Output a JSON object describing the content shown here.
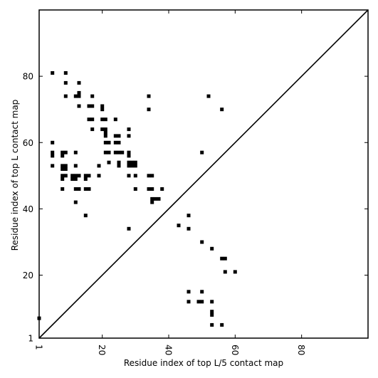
{
  "chart_data": {
    "type": "scatter",
    "title": "",
    "xlabel": "Residue index of top L/5 contact map",
    "ylabel": "Residue index of top L contact map",
    "xlim": [
      1,
      100
    ],
    "ylim": [
      1,
      100
    ],
    "xticks": [
      1,
      20,
      40,
      60,
      80
    ],
    "yticks": [
      1,
      20,
      40,
      60,
      80
    ],
    "xtick_labels": [
      "1",
      "20",
      "40",
      "60",
      "80"
    ],
    "ytick_labels": [
      "1",
      "20",
      "40",
      "60",
      "80"
    ],
    "xtick_rotation": "vertical",
    "diagonal": true,
    "grid": false,
    "marker": "square",
    "color": "#000000",
    "series": [
      {
        "name": "",
        "points": [
          [
            5,
            81
          ],
          [
            9,
            81
          ],
          [
            9,
            78
          ],
          [
            13,
            78
          ],
          [
            9,
            74
          ],
          [
            12,
            74
          ],
          [
            13,
            75
          ],
          [
            13,
            74
          ],
          [
            17,
            74
          ],
          [
            34,
            74
          ],
          [
            52,
            74
          ],
          [
            13,
            71
          ],
          [
            16,
            71
          ],
          [
            17,
            71
          ],
          [
            20,
            71
          ],
          [
            20,
            70
          ],
          [
            34,
            70
          ],
          [
            56,
            70
          ],
          [
            16,
            67
          ],
          [
            17,
            67
          ],
          [
            20,
            67
          ],
          [
            21,
            67
          ],
          [
            24,
            67
          ],
          [
            17,
            64
          ],
          [
            20,
            64
          ],
          [
            21,
            64
          ],
          [
            21,
            63
          ],
          [
            28,
            64
          ],
          [
            21,
            62
          ],
          [
            24,
            62
          ],
          [
            25,
            62
          ],
          [
            28,
            62
          ],
          [
            5,
            60
          ],
          [
            21,
            60
          ],
          [
            22,
            60
          ],
          [
            24,
            60
          ],
          [
            25,
            60
          ],
          [
            5,
            57
          ],
          [
            8,
            57
          ],
          [
            9,
            57
          ],
          [
            12,
            57
          ],
          [
            21,
            57
          ],
          [
            22,
            57
          ],
          [
            24,
            57
          ],
          [
            25,
            57
          ],
          [
            26,
            57
          ],
          [
            28,
            57
          ],
          [
            50,
            57
          ],
          [
            5,
            56
          ],
          [
            8,
            56
          ],
          [
            28,
            56
          ],
          [
            22,
            54
          ],
          [
            25,
            54
          ],
          [
            28,
            54
          ],
          [
            29,
            54
          ],
          [
            30,
            54
          ],
          [
            5,
            53
          ],
          [
            8,
            53
          ],
          [
            9,
            53
          ],
          [
            12,
            53
          ],
          [
            19,
            53
          ],
          [
            25,
            53
          ],
          [
            28,
            53
          ],
          [
            29,
            53
          ],
          [
            30,
            53
          ],
          [
            8,
            52
          ],
          [
            9,
            52
          ],
          [
            8,
            50
          ],
          [
            9,
            50
          ],
          [
            11,
            50
          ],
          [
            12,
            50
          ],
          [
            13,
            50
          ],
          [
            15,
            50
          ],
          [
            16,
            50
          ],
          [
            19,
            50
          ],
          [
            28,
            50
          ],
          [
            30,
            50
          ],
          [
            34,
            50
          ],
          [
            35,
            50
          ],
          [
            8,
            49
          ],
          [
            11,
            49
          ],
          [
            12,
            49
          ],
          [
            15,
            49
          ],
          [
            8,
            46
          ],
          [
            12,
            46
          ],
          [
            13,
            46
          ],
          [
            15,
            46
          ],
          [
            16,
            46
          ],
          [
            30,
            46
          ],
          [
            34,
            46
          ],
          [
            35,
            46
          ],
          [
            38,
            46
          ],
          [
            35,
            43
          ],
          [
            36,
            43
          ],
          [
            37,
            43
          ],
          [
            35,
            42
          ],
          [
            12,
            42
          ],
          [
            15,
            38
          ],
          [
            46,
            38
          ],
          [
            43,
            35
          ],
          [
            28,
            34
          ],
          [
            46,
            34
          ],
          [
            50,
            30
          ],
          [
            53,
            28
          ],
          [
            56,
            25
          ],
          [
            57,
            25
          ],
          [
            57,
            21
          ],
          [
            60,
            21
          ],
          [
            46,
            15
          ],
          [
            50,
            15
          ],
          [
            46,
            12
          ],
          [
            49,
            12
          ],
          [
            50,
            12
          ],
          [
            53,
            12
          ],
          [
            53,
            9
          ],
          [
            53,
            8
          ],
          [
            53,
            5
          ],
          [
            56,
            5
          ],
          [
            1,
            7
          ]
        ]
      }
    ]
  }
}
